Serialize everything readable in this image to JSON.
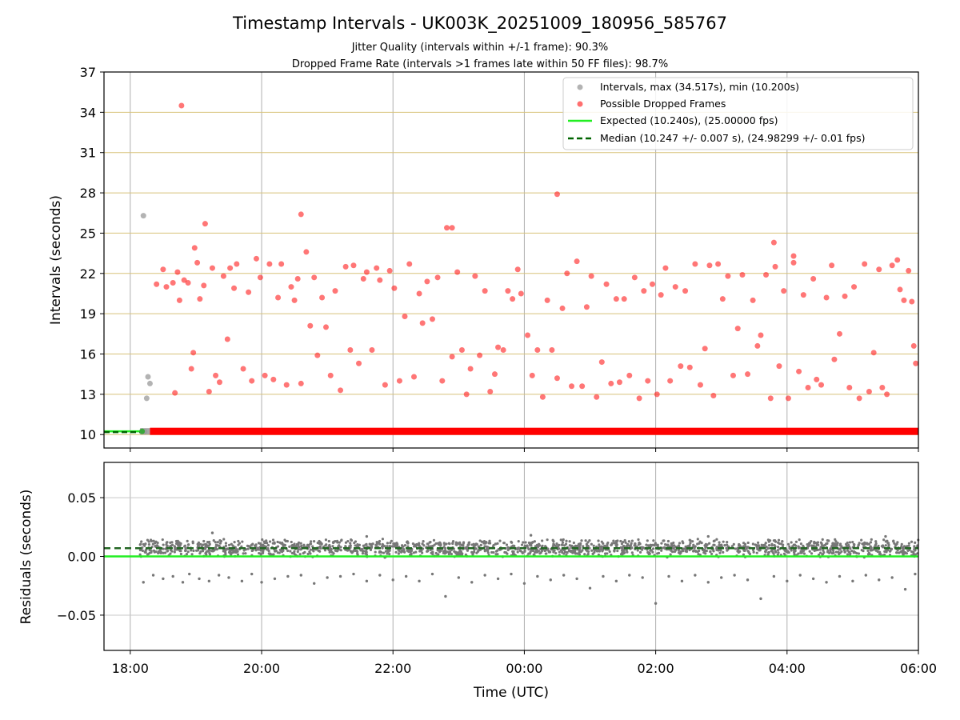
{
  "chart_data": [
    {
      "type": "scatter",
      "title": "Timestamp Intervals - UK003K_20251009_180956_585767",
      "subtitle_lines": [
        "Jitter Quality (intervals within +/-1 frame): 90.3%",
        "Dropped Frame Rate (intervals >1 frames late within 50 FF files): 98.7%"
      ],
      "xlabel": "",
      "ylabel": "Intervals (seconds)",
      "x_unit": "hours since 18:00 UTC",
      "xlim": [
        -0.4,
        12.0
      ],
      "ylim": [
        9.0,
        37.0
      ],
      "yticks": [
        10,
        13,
        16,
        19,
        22,
        25,
        28,
        31,
        34,
        37
      ],
      "xticks": [
        0,
        2,
        4,
        6,
        8,
        10,
        12
      ],
      "xtick_labels": [
        "18:00",
        "20:00",
        "22:00",
        "00:00",
        "02:00",
        "04:00",
        "06:00"
      ],
      "grid": true,
      "legend_position": "top-right",
      "legend": [
        "Intervals, max (34.517s), min (10.200s)",
        "Possible Dropped Frames",
        "Expected (10.240s), (25.00000 fps)",
        "Median (10.247 +/- 0.007 s), (24.98299 +/- 0.01 fps)"
      ],
      "series": [
        {
          "name": "Intervals, max (34.517s), min (10.200s)",
          "color": "#999999",
          "points": [
            [
              0.2,
              26.3
            ],
            [
              0.27,
              14.3
            ],
            [
              0.3,
              13.8
            ],
            [
              0.25,
              12.7
            ],
            [
              0.18,
              10.25
            ],
            [
              0.22,
              10.22
            ]
          ],
          "band": {
            "x_start": 0.15,
            "x_end": 0.3,
            "y": 10.24
          }
        },
        {
          "name": "Possible Dropped Frames",
          "color": "#ff2222",
          "points": [
            [
              0.78,
              34.5
            ],
            [
              6.5,
              27.9
            ],
            [
              0.98,
              23.9
            ],
            [
              1.14,
              25.7
            ],
            [
              2.6,
              26.4
            ],
            [
              4.9,
              25.4
            ],
            [
              9.8,
              24.3
            ],
            [
              10.1,
              23.3
            ],
            [
              0.4,
              21.2
            ],
            [
              0.5,
              22.3
            ],
            [
              0.55,
              21.0
            ],
            [
              0.65,
              21.3
            ],
            [
              0.68,
              13.1
            ],
            [
              0.72,
              22.1
            ],
            [
              0.75,
              20.0
            ],
            [
              0.82,
              21.5
            ],
            [
              0.88,
              21.3
            ],
            [
              0.93,
              14.9
            ],
            [
              0.96,
              16.1
            ],
            [
              1.02,
              22.8
            ],
            [
              1.06,
              20.1
            ],
            [
              1.12,
              21.1
            ],
            [
              1.2,
              13.2
            ],
            [
              1.25,
              22.4
            ],
            [
              1.3,
              14.4
            ],
            [
              1.36,
              13.9
            ],
            [
              1.42,
              21.8
            ],
            [
              1.48,
              17.1
            ],
            [
              1.52,
              22.4
            ],
            [
              1.58,
              20.9
            ],
            [
              1.62,
              22.7
            ],
            [
              1.72,
              14.9
            ],
            [
              1.8,
              20.6
            ],
            [
              1.85,
              14.0
            ],
            [
              1.92,
              23.1
            ],
            [
              1.98,
              21.7
            ],
            [
              2.05,
              14.4
            ],
            [
              2.12,
              22.7
            ],
            [
              2.18,
              14.1
            ],
            [
              2.25,
              20.2
            ],
            [
              2.3,
              22.7
            ],
            [
              2.38,
              13.7
            ],
            [
              2.45,
              21.0
            ],
            [
              2.5,
              20.0
            ],
            [
              2.55,
              21.6
            ],
            [
              2.6,
              13.8
            ],
            [
              2.68,
              23.6
            ],
            [
              2.74,
              18.1
            ],
            [
              2.8,
              21.7
            ],
            [
              2.85,
              15.9
            ],
            [
              2.92,
              20.2
            ],
            [
              2.98,
              18.0
            ],
            [
              3.05,
              14.4
            ],
            [
              3.12,
              20.7
            ],
            [
              3.2,
              13.3
            ],
            [
              3.28,
              22.5
            ],
            [
              3.35,
              16.3
            ],
            [
              3.4,
              22.6
            ],
            [
              3.48,
              15.3
            ],
            [
              3.55,
              21.6
            ],
            [
              3.6,
              22.1
            ],
            [
              3.68,
              16.3
            ],
            [
              3.75,
              22.4
            ],
            [
              3.8,
              21.5
            ],
            [
              3.88,
              13.7
            ],
            [
              3.95,
              22.2
            ],
            [
              4.02,
              20.9
            ],
            [
              4.1,
              14.0
            ],
            [
              4.18,
              18.8
            ],
            [
              4.25,
              22.7
            ],
            [
              4.32,
              14.3
            ],
            [
              4.4,
              20.5
            ],
            [
              4.45,
              18.3
            ],
            [
              4.52,
              21.4
            ],
            [
              4.6,
              18.6
            ],
            [
              4.68,
              21.7
            ],
            [
              4.75,
              14.0
            ],
            [
              4.82,
              25.4
            ],
            [
              4.9,
              15.8
            ],
            [
              4.98,
              22.1
            ],
            [
              5.05,
              16.3
            ],
            [
              5.12,
              13.0
            ],
            [
              5.18,
              14.9
            ],
            [
              5.25,
              21.8
            ],
            [
              5.32,
              15.9
            ],
            [
              5.4,
              20.7
            ],
            [
              5.48,
              13.2
            ],
            [
              5.55,
              14.5
            ],
            [
              5.6,
              16.5
            ],
            [
              5.68,
              16.3
            ],
            [
              5.75,
              20.7
            ],
            [
              5.82,
              20.1
            ],
            [
              5.9,
              22.3
            ],
            [
              5.95,
              20.5
            ],
            [
              6.05,
              17.4
            ],
            [
              6.12,
              14.4
            ],
            [
              6.2,
              16.3
            ],
            [
              6.28,
              12.8
            ],
            [
              6.35,
              20.0
            ],
            [
              6.42,
              16.3
            ],
            [
              6.5,
              14.2
            ],
            [
              6.58,
              19.4
            ],
            [
              6.65,
              22.0
            ],
            [
              6.72,
              13.6
            ],
            [
              6.8,
              22.9
            ],
            [
              6.88,
              13.6
            ],
            [
              6.95,
              19.5
            ],
            [
              7.02,
              21.8
            ],
            [
              7.1,
              12.8
            ],
            [
              7.18,
              15.4
            ],
            [
              7.25,
              21.2
            ],
            [
              7.32,
              13.8
            ],
            [
              7.4,
              20.1
            ],
            [
              7.45,
              13.9
            ],
            [
              7.52,
              20.1
            ],
            [
              7.6,
              14.4
            ],
            [
              7.68,
              21.7
            ],
            [
              7.75,
              12.7
            ],
            [
              7.82,
              20.7
            ],
            [
              7.88,
              14.0
            ],
            [
              7.95,
              21.2
            ],
            [
              8.02,
              13.0
            ],
            [
              8.08,
              20.4
            ],
            [
              8.15,
              22.4
            ],
            [
              8.22,
              14.0
            ],
            [
              8.3,
              21.0
            ],
            [
              8.38,
              15.1
            ],
            [
              8.45,
              20.7
            ],
            [
              8.52,
              15.0
            ],
            [
              8.6,
              22.7
            ],
            [
              8.68,
              13.7
            ],
            [
              8.75,
              16.4
            ],
            [
              8.82,
              22.6
            ],
            [
              8.88,
              12.9
            ],
            [
              8.95,
              22.7
            ],
            [
              9.02,
              20.1
            ],
            [
              9.1,
              21.8
            ],
            [
              9.18,
              14.4
            ],
            [
              9.25,
              17.9
            ],
            [
              9.32,
              21.9
            ],
            [
              9.4,
              14.5
            ],
            [
              9.48,
              20.0
            ],
            [
              9.55,
              16.6
            ],
            [
              9.6,
              17.4
            ],
            [
              9.68,
              21.9
            ],
            [
              9.75,
              12.7
            ],
            [
              9.82,
              22.5
            ],
            [
              9.88,
              15.1
            ],
            [
              9.95,
              20.7
            ],
            [
              10.02,
              12.7
            ],
            [
              10.1,
              22.8
            ],
            [
              10.18,
              14.7
            ],
            [
              10.25,
              20.4
            ],
            [
              10.32,
              13.5
            ],
            [
              10.4,
              21.6
            ],
            [
              10.45,
              14.1
            ],
            [
              10.52,
              13.7
            ],
            [
              10.6,
              20.2
            ],
            [
              10.68,
              22.6
            ],
            [
              10.72,
              15.6
            ],
            [
              10.8,
              17.5
            ],
            [
              10.88,
              20.3
            ],
            [
              10.95,
              13.5
            ],
            [
              11.02,
              21.0
            ],
            [
              11.1,
              12.7
            ],
            [
              11.18,
              22.7
            ],
            [
              11.25,
              13.2
            ],
            [
              11.32,
              16.1
            ],
            [
              11.4,
              22.3
            ],
            [
              11.45,
              13.5
            ],
            [
              11.52,
              13.0
            ],
            [
              11.6,
              22.6
            ],
            [
              11.68,
              23.0
            ],
            [
              11.72,
              20.8
            ],
            [
              11.78,
              20.0
            ],
            [
              11.85,
              22.2
            ],
            [
              11.9,
              19.9
            ],
            [
              11.93,
              16.6
            ],
            [
              11.96,
              15.3
            ]
          ]
        },
        {
          "name": "Expected (10.240s), (25.00000 fps)",
          "color": "#22ee22",
          "y": 10.24
        },
        {
          "name": "Median (10.247 +/- 0.007 s), (24.98299 +/- 0.01 fps)",
          "color": "#006400",
          "y": 10.247
        }
      ],
      "dropped_band": {
        "x_start": 0.3,
        "x_end": 12.0,
        "y": 10.24,
        "color": "#ff0000"
      }
    },
    {
      "type": "scatter",
      "title": "",
      "xlabel": "Time (UTC)",
      "ylabel": "Residuals (seconds)",
      "x_unit": "hours since 18:00 UTC",
      "xlim": [
        -0.4,
        12.0
      ],
      "ylim": [
        -0.08,
        0.08
      ],
      "yticks": [
        0.05,
        0.0,
        -0.05
      ],
      "ytick_labels": [
        "0.05",
        "0.00",
        "−0.05"
      ],
      "xticks": [
        0,
        2,
        4,
        6,
        8,
        10,
        12
      ],
      "xtick_labels": [
        "18:00",
        "20:00",
        "22:00",
        "00:00",
        "02:00",
        "04:00",
        "06:00"
      ],
      "grid": true,
      "expected_residual": 0.0,
      "median_residual": 0.007,
      "residual_band": {
        "x_start": 0.15,
        "x_end": 12.0,
        "center": 0.007,
        "spread": 0.005,
        "color": "#777777"
      },
      "outliers": [
        [
          0.2,
          -0.022
        ],
        [
          0.35,
          -0.016
        ],
        [
          0.5,
          -0.019
        ],
        [
          0.65,
          -0.017
        ],
        [
          0.8,
          -0.022
        ],
        [
          0.9,
          -0.015
        ],
        [
          1.05,
          -0.019
        ],
        [
          1.2,
          -0.021
        ],
        [
          1.35,
          -0.016
        ],
        [
          1.5,
          -0.018
        ],
        [
          1.7,
          -0.021
        ],
        [
          1.85,
          -0.015
        ],
        [
          2.0,
          -0.022
        ],
        [
          2.2,
          -0.019
        ],
        [
          2.4,
          -0.017
        ],
        [
          2.6,
          -0.016
        ],
        [
          2.8,
          -0.023
        ],
        [
          3.0,
          -0.018
        ],
        [
          3.2,
          -0.017
        ],
        [
          3.4,
          -0.015
        ],
        [
          3.6,
          -0.021
        ],
        [
          3.8,
          -0.016
        ],
        [
          4.0,
          -0.02
        ],
        [
          4.2,
          -0.017
        ],
        [
          4.4,
          -0.021
        ],
        [
          4.6,
          -0.015
        ],
        [
          4.8,
          -0.034
        ],
        [
          5.0,
          -0.018
        ],
        [
          5.2,
          -0.022
        ],
        [
          5.4,
          -0.016
        ],
        [
          5.6,
          -0.019
        ],
        [
          5.8,
          -0.015
        ],
        [
          6.0,
          -0.023
        ],
        [
          6.2,
          -0.017
        ],
        [
          6.4,
          -0.02
        ],
        [
          6.6,
          -0.016
        ],
        [
          6.8,
          -0.019
        ],
        [
          7.0,
          -0.027
        ],
        [
          7.2,
          -0.017
        ],
        [
          7.4,
          -0.021
        ],
        [
          7.6,
          -0.016
        ],
        [
          7.8,
          -0.018
        ],
        [
          8.0,
          -0.04
        ],
        [
          8.2,
          -0.017
        ],
        [
          8.4,
          -0.021
        ],
        [
          8.6,
          -0.016
        ],
        [
          8.8,
          -0.022
        ],
        [
          9.0,
          -0.018
        ],
        [
          9.2,
          -0.016
        ],
        [
          9.4,
          -0.02
        ],
        [
          9.6,
          -0.036
        ],
        [
          9.8,
          -0.017
        ],
        [
          10.0,
          -0.021
        ],
        [
          10.2,
          -0.016
        ],
        [
          10.4,
          -0.019
        ],
        [
          10.6,
          -0.022
        ],
        [
          10.8,
          -0.017
        ],
        [
          11.0,
          -0.021
        ],
        [
          11.2,
          -0.016
        ],
        [
          11.4,
          -0.02
        ],
        [
          11.6,
          -0.018
        ],
        [
          11.8,
          -0.028
        ],
        [
          11.95,
          -0.015
        ],
        [
          1.25,
          0.02
        ],
        [
          3.6,
          0.017
        ],
        [
          6.1,
          0.018
        ],
        [
          8.8,
          0.017
        ],
        [
          11.5,
          0.017
        ]
      ]
    }
  ]
}
